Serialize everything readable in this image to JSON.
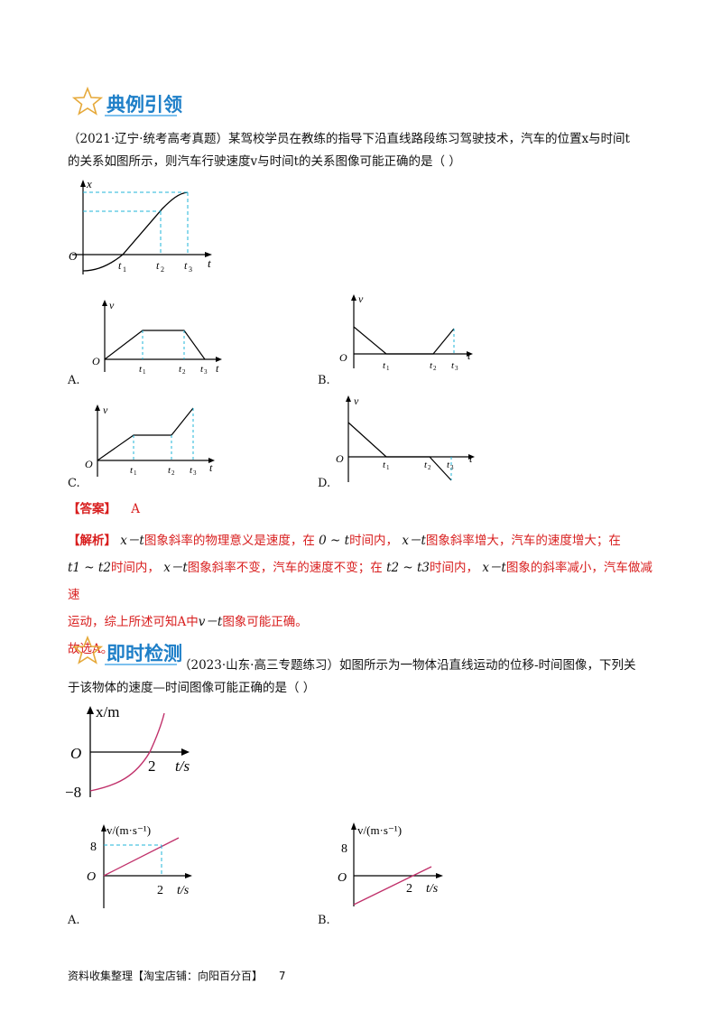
{
  "section1": {
    "title": "典例引领",
    "star_icon": "star-outline-icon",
    "question_line1": "（2021·辽宁·统考高考真题）某驾校学员在教练的指导下沿直线路段练习驾驶技术，汽车的位置x与时间t",
    "question_line2": "的关系如图所示，则汽车行驶速度v与时间t的关系图像可能正确的是（        ）",
    "option_labels": [
      "A.",
      "B.",
      "C.",
      "D."
    ],
    "answer_label": "【答案】",
    "answer_value": "A",
    "analysis_label": "【解析】",
    "analysis_line1a": "x－t",
    "analysis_line1b": "图象斜率的物理意义是速度，在",
    "analysis_line1c": "0 ~ t",
    "analysis_line1d": "时间内，",
    "analysis_line1e": "x－t",
    "analysis_line1f": "图象斜率增大，汽车的速度增大；在",
    "analysis_line2a": "t1 ~ t2",
    "analysis_line2b": "时间内，",
    "analysis_line2c": "x－t",
    "analysis_line2d": "图象斜率不变，汽车的速度不变；在",
    "analysis_line2e": "t2 ~ t3",
    "analysis_line2f": "时间内，",
    "analysis_line2g": "x－t",
    "analysis_line2h": "图象的斜率减小，汽车做减速",
    "analysis_line3a": "运动，综上所述可知A中",
    "analysis_line3b": "v－t",
    "analysis_line3c": "图象可能正确。",
    "conclusion": "故选A。"
  },
  "section2": {
    "title": "即时检测",
    "star_icon": "star-outline-icon",
    "question_line1": "（2023·山东·高三专题练习）如图所示为一物体沿直线运动的位移-时间图像，下列关",
    "question_line2": "于该物体的速度—时间图像可能正确的是（                        ）",
    "graph_labels": {
      "x_axis": "x/m",
      "t_axis": "t/s",
      "origin": "O",
      "tick_2": "2",
      "tick_neg8": "−8"
    },
    "vt_labels": {
      "v_axis": "v/(m·s⁻¹)",
      "t_axis": "t/s",
      "origin": "O",
      "tick_8": "8",
      "tick_2": "2"
    },
    "option_labels": [
      "A.",
      "B."
    ]
  },
  "graph_text": {
    "x": "x",
    "v": "v",
    "t": "t",
    "O": "O",
    "t1": "t",
    "t2": "t",
    "t3": "t",
    "sub1": "1",
    "sub2": "2",
    "sub3": "3"
  },
  "footer": {
    "text": "资料收集整理【淘宝店铺：向阳百分百】",
    "page": "7"
  },
  "colors": {
    "accent": "#1e7fc8",
    "red": "#d81e1e",
    "dashed": "#1fb4d8",
    "curve": "#c0306a"
  }
}
